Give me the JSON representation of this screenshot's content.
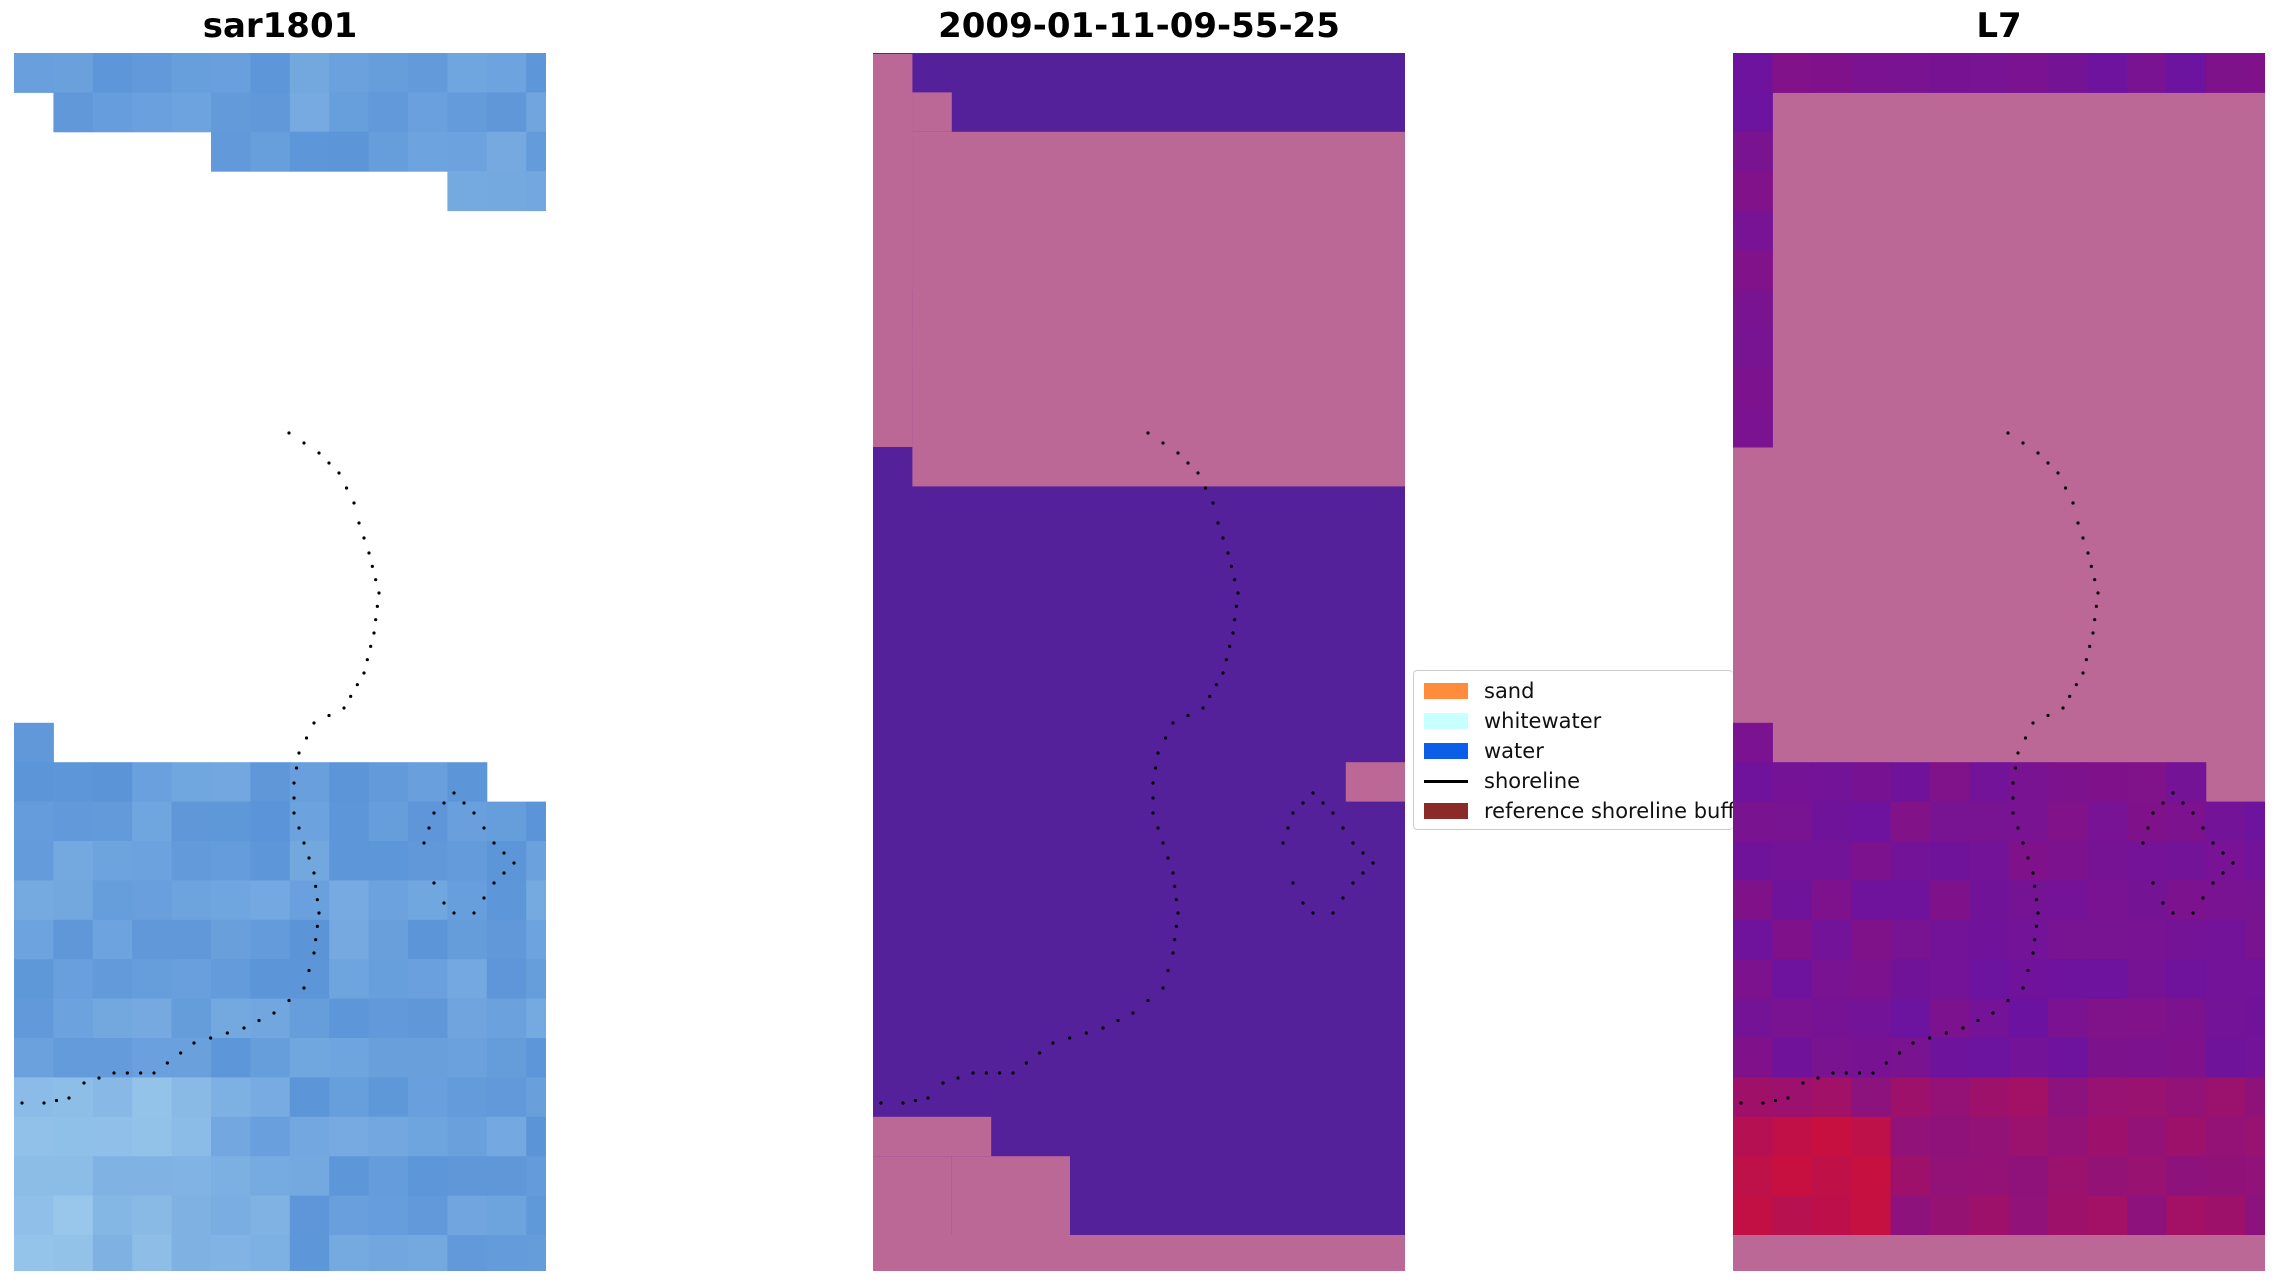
{
  "panels": [
    {
      "id": "rgb",
      "title": "sar1801"
    },
    {
      "id": "classified",
      "title": "2009-01-11-09-55-25"
    },
    {
      "id": "mndwi",
      "title": "L7"
    }
  ],
  "legend": {
    "items": [
      {
        "label": "sand",
        "kind": "patch",
        "color": "#ff8c3b"
      },
      {
        "label": "whitewater",
        "kind": "patch",
        "color": "#c8ffff"
      },
      {
        "label": "water",
        "kind": "patch",
        "color": "#0a5ee8"
      },
      {
        "label": "shoreline",
        "kind": "line",
        "color": "#000000"
      },
      {
        "label": "reference shoreline buffer",
        "kind": "patch",
        "color": "#8c2a2a"
      }
    ]
  },
  "colors": {
    "rgb_base": "#5b94d8",
    "rgb_light": "#a8d4f0",
    "classified_water": "#55219a",
    "classified_buffer": "#bb6897",
    "mndwi_low": "#6b13a0",
    "mndwi_high": "#c8103e",
    "shoreline": "#000000"
  }
}
